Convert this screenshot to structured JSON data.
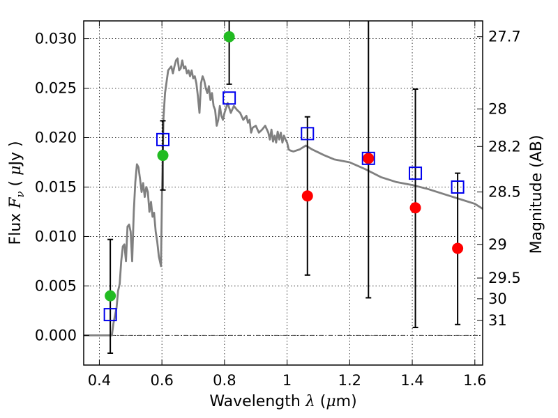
{
  "chart_data": {
    "type": "scatter",
    "xlabel": "Wavelength  λ (μm)",
    "ylabel": "Flux  Fν  ( μJy )",
    "y2label": "Magnitude (AB)",
    "xlim": [
      0.35,
      1.625
    ],
    "ylim": [
      -0.003,
      0.0318
    ],
    "grid": true,
    "x_ticks": [
      0.4,
      0.6,
      0.8,
      1.0,
      1.2,
      1.4,
      1.6
    ],
    "x_tick_labels": [
      "0.4",
      "0.6",
      "0.8",
      "1",
      "1.2",
      "1.4",
      "1.6"
    ],
    "y_ticks": [
      0.0,
      0.005,
      0.01,
      0.015,
      0.02,
      0.025,
      0.03
    ],
    "y_tick_labels": [
      "0.000",
      "0.005",
      "0.010",
      "0.015",
      "0.020",
      "0.025",
      "0.030"
    ],
    "y2_ticks": [
      {
        "label": "27.7",
        "flux": 0.0302
      },
      {
        "label": "28",
        "flux": 0.0229
      },
      {
        "label": "28.2",
        "flux": 0.0191
      },
      {
        "label": "28.5",
        "flux": 0.0145
      },
      {
        "label": "29",
        "flux": 0.0092
      },
      {
        "label": "29.5",
        "flux": 0.0058
      },
      {
        "label": "30",
        "flux": 0.0037
      },
      {
        "label": "31",
        "flux": 0.0015
      }
    ],
    "zero_line": 0.0,
    "colors": {
      "model": "#808080",
      "detected": "#22bb22",
      "upper_limit": "#ff0000",
      "model_box": "#0000ee",
      "errorbar": "#000000"
    },
    "model_sed": {
      "x": [
        0.35,
        0.43,
        0.44,
        0.445,
        0.455,
        0.46,
        0.465,
        0.47,
        0.475,
        0.48,
        0.485,
        0.49,
        0.495,
        0.5,
        0.505,
        0.51,
        0.515,
        0.52,
        0.525,
        0.53,
        0.535,
        0.54,
        0.545,
        0.55,
        0.555,
        0.56,
        0.565,
        0.57,
        0.575,
        0.58,
        0.585,
        0.59,
        0.597,
        0.6,
        0.605,
        0.61,
        0.62,
        0.63,
        0.635,
        0.64,
        0.645,
        0.65,
        0.655,
        0.66,
        0.665,
        0.67,
        0.675,
        0.68,
        0.685,
        0.69,
        0.695,
        0.7,
        0.705,
        0.71,
        0.715,
        0.72,
        0.725,
        0.73,
        0.735,
        0.74,
        0.745,
        0.75,
        0.755,
        0.76,
        0.765,
        0.77,
        0.775,
        0.78,
        0.785,
        0.79,
        0.795,
        0.8,
        0.81,
        0.82,
        0.83,
        0.84,
        0.85,
        0.86,
        0.87,
        0.875,
        0.88,
        0.885,
        0.89,
        0.9,
        0.91,
        0.92,
        0.93,
        0.94,
        0.945,
        0.95,
        0.955,
        0.96,
        0.965,
        0.97,
        0.975,
        0.98,
        0.985,
        0.99,
        0.995,
        1.0,
        1.005,
        1.01,
        1.02,
        1.04,
        1.06,
        1.08,
        1.1,
        1.12,
        1.15,
        1.2,
        1.25,
        1.3,
        1.35,
        1.4,
        1.45,
        1.5,
        1.55,
        1.6,
        1.625
      ],
      "y": [
        0.0,
        0.0,
        0.0,
        0.0012,
        0.0028,
        0.0045,
        0.0052,
        0.0075,
        0.009,
        0.0092,
        0.0075,
        0.011,
        0.0112,
        0.0105,
        0.0075,
        0.0125,
        0.0155,
        0.0173,
        0.017,
        0.0158,
        0.0145,
        0.0154,
        0.014,
        0.015,
        0.0145,
        0.0125,
        0.0135,
        0.012,
        0.0124,
        0.0105,
        0.0095,
        0.008,
        0.007,
        0.014,
        0.022,
        0.0245,
        0.0268,
        0.0272,
        0.0265,
        0.0272,
        0.0278,
        0.028,
        0.0268,
        0.027,
        0.0278,
        0.027,
        0.0272,
        0.0265,
        0.0268,
        0.0262,
        0.0268,
        0.026,
        0.0262,
        0.0255,
        0.0242,
        0.0225,
        0.0255,
        0.0262,
        0.0258,
        0.025,
        0.0245,
        0.0252,
        0.0238,
        0.0245,
        0.0232,
        0.0228,
        0.0212,
        0.0218,
        0.0232,
        0.0222,
        0.0218,
        0.0225,
        0.0235,
        0.0225,
        0.0232,
        0.0228,
        0.0225,
        0.0218,
        0.0222,
        0.0215,
        0.0218,
        0.0205,
        0.021,
        0.0212,
        0.0205,
        0.0208,
        0.0212,
        0.0205,
        0.0198,
        0.0208,
        0.0196,
        0.0202,
        0.0195,
        0.0206,
        0.0198,
        0.0205,
        0.0195,
        0.0202,
        0.0198,
        0.0195,
        0.0188,
        0.0187,
        0.0186,
        0.0188,
        0.0192,
        0.0188,
        0.0185,
        0.0182,
        0.0178,
        0.0175,
        0.0168,
        0.016,
        0.0155,
        0.0152,
        0.0148,
        0.0143,
        0.0138,
        0.0133,
        0.0128
      ]
    },
    "detected": {
      "x": [
        0.435,
        0.603,
        0.815
      ],
      "y": [
        0.004,
        0.0182,
        0.0302
      ],
      "err_low": [
        -0.0018,
        0.0147,
        0.0254
      ],
      "err_high": [
        0.0097,
        0.0217,
        0.0318
      ]
    },
    "upper_limits": {
      "x": [
        1.065,
        1.26,
        1.41,
        1.545
      ],
      "y": [
        0.0141,
        0.0179,
        0.0129,
        0.0088
      ],
      "err_low": [
        0.0061,
        0.0038,
        0.0008,
        0.0011
      ],
      "err_high": [
        0.0221,
        0.0318,
        0.0249,
        0.0164
      ]
    },
    "model_photometry": {
      "x": [
        0.435,
        0.603,
        0.815,
        1.065,
        1.26,
        1.41,
        1.545
      ],
      "y": [
        0.0021,
        0.0198,
        0.024,
        0.0204,
        0.0179,
        0.0164,
        0.015
      ]
    }
  }
}
